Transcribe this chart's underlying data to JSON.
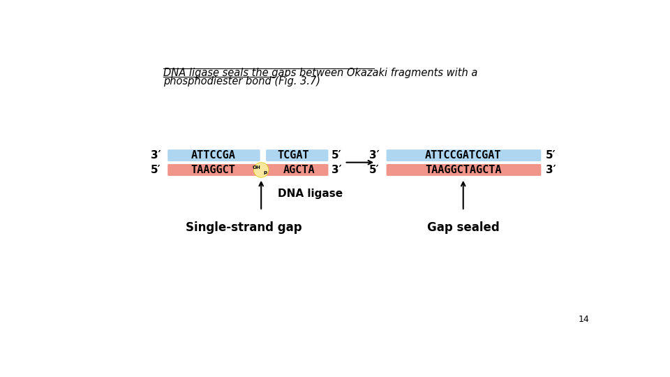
{
  "title_line1": "DNA ligase seals the gaps between Okazaki fragments with a",
  "title_line2": "phosphodiester bond (Fig. 3.7)",
  "bg_color": "#ffffff",
  "blue_color": "#aed6f1",
  "pink_color": "#f1948a",
  "yellow_color": "#f9e79f",
  "prime3": "3′",
  "prime5": "5′",
  "left_top_seq1": "ATTCCGA",
  "left_top_seq2": "TCGAT",
  "left_bot_seq1": "TAAGGCT",
  "left_bot_oh": "OH",
  "left_bot_p": "p",
  "left_bot_seq2": "AGCTA",
  "right_top_seq": "ATTCCGATCGAT",
  "right_bot_seq": "TAAGGCTAGCTA",
  "dna_ligase_label": "DNA ligase",
  "single_strand_gap_label": "Single-strand gap",
  "gap_sealed_label": "Gap sealed",
  "page_number": "14"
}
